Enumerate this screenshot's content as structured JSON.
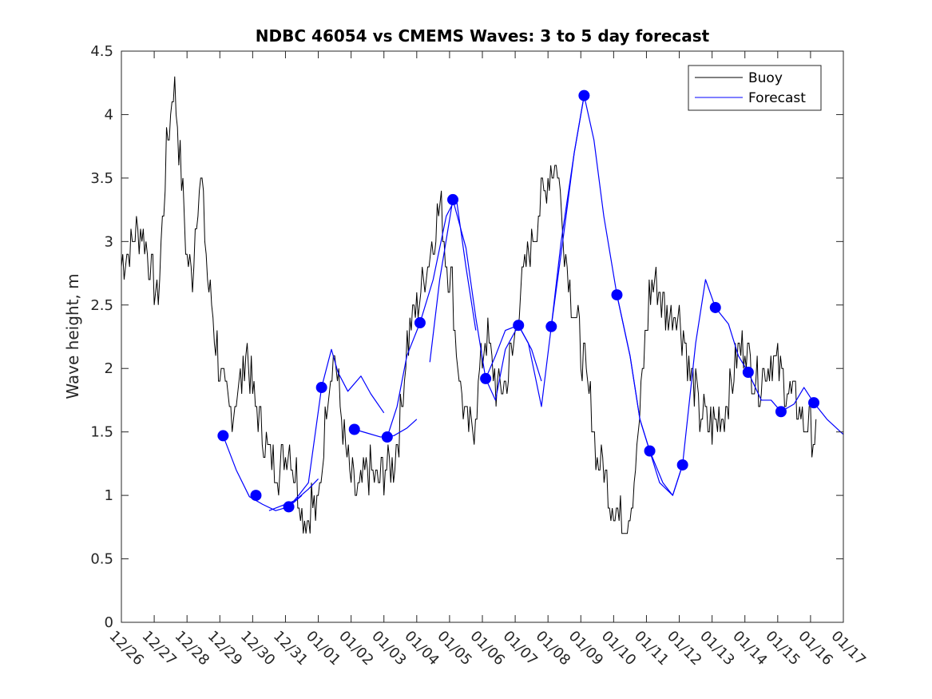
{
  "chart_data": {
    "type": "line",
    "title": "NDBC 46054 vs CMEMS Waves: 3 to 5 day forecast",
    "xlabel": "",
    "ylabel": "Wave height, m",
    "xlim": [
      0,
      22
    ],
    "ylim": [
      0,
      4.5
    ],
    "x_tick_labels": [
      "12/26",
      "12/27",
      "12/28",
      "12/29",
      "12/30",
      "12/31",
      "01/01",
      "01/02",
      "01/03",
      "01/04",
      "01/05",
      "01/06",
      "01/07",
      "01/08",
      "01/09",
      "01/10",
      "01/11",
      "01/12",
      "01/13",
      "01/14",
      "01/15",
      "01/16",
      "01/17"
    ],
    "y_ticks": [
      0,
      0.5,
      1,
      1.5,
      2,
      2.5,
      3,
      3.5,
      4,
      4.5
    ],
    "y_tick_labels": [
      "0",
      "0.5",
      "1",
      "1.5",
      "2",
      "2.5",
      "3",
      "3.5",
      "4",
      "4.5"
    ],
    "legend": {
      "placement": "top-right",
      "entries": [
        {
          "name": "Buoy",
          "color": "#000000"
        },
        {
          "name": "Forecast",
          "color": "#0000ff"
        }
      ]
    },
    "buoy_anchor_series": {
      "name": "Buoy",
      "color": "#000000",
      "x": [
        0,
        0.3,
        0.6,
        0.9,
        1.1,
        1.2,
        1.35,
        1.5,
        1.6,
        1.8,
        2.0,
        2.15,
        2.3,
        2.45,
        2.6,
        2.8,
        3.0,
        3.3,
        3.5,
        3.7,
        3.8,
        4.0,
        4.3,
        4.5,
        4.8,
        5.1,
        5.3,
        5.5,
        5.7,
        5.8,
        5.95,
        6.1,
        6.3,
        6.4,
        6.5,
        6.6,
        6.8,
        7.0,
        7.2,
        7.5,
        7.8,
        8.0,
        8.3,
        8.5,
        8.7,
        8.9,
        9.1,
        9.3,
        9.5,
        9.7,
        9.9,
        10.1,
        10.2,
        10.35,
        10.5,
        10.7,
        10.9,
        11.1,
        11.3,
        11.5,
        11.7,
        11.9,
        12.1,
        12.3,
        12.5,
        12.7,
        12.9,
        13.1,
        13.3,
        13.5,
        13.7,
        13.9,
        14.1,
        14.3,
        14.5,
        14.7,
        14.9,
        15.1,
        15.3,
        15.5,
        15.7,
        15.9,
        16.1,
        16.3,
        16.5,
        16.7,
        16.9,
        17.1,
        17.3,
        17.5,
        17.6,
        17.8,
        18.0,
        18.2,
        18.4,
        18.6,
        18.8,
        19.0,
        19.2,
        19.4,
        19.6,
        19.8,
        20.0,
        20.2,
        20.4,
        20.6,
        20.8,
        21.0,
        21.2
      ],
      "y": [
        2.8,
        3.0,
        3.1,
        2.8,
        2.5,
        2.9,
        3.6,
        4.0,
        4.3,
        3.6,
        2.9,
        2.7,
        3.3,
        3.5,
        2.8,
        2.4,
        2.0,
        1.6,
        1.8,
        1.9,
        2.2,
        1.8,
        1.5,
        1.3,
        1.2,
        1.4,
        1.2,
        0.9,
        0.8,
        1.0,
        0.8,
        1.2,
        1.9,
        2.05,
        2.1,
        1.9,
        1.4,
        1.1,
        1.0,
        1.2,
        1.1,
        1.2,
        1.2,
        1.6,
        2.2,
        2.4,
        2.6,
        2.8,
        3.0,
        3.3,
        2.9,
        2.6,
        2.2,
        1.8,
        1.6,
        1.5,
        1.9,
        2.3,
        2.0,
        1.8,
        1.9,
        2.1,
        2.5,
        2.8,
        3.0,
        3.2,
        3.4,
        3.6,
        3.6,
        3.0,
        2.6,
        2.3,
        2.0,
        1.7,
        1.3,
        1.2,
        1.0,
        0.85,
        0.8,
        0.9,
        1.3,
        2.0,
        2.6,
        2.7,
        2.5,
        2.4,
        2.5,
        2.3,
        2.0,
        1.8,
        1.65,
        1.6,
        1.55,
        1.6,
        1.7,
        1.9,
        2.1,
        2.2,
        2.0,
        1.9,
        2.0,
        2.1,
        2.0,
        1.9,
        1.8,
        1.7,
        1.6,
        1.5,
        1.5
      ]
    },
    "forecast_series": [
      {
        "name": "Forecast",
        "color": "#0000ff",
        "x": [
          3.1,
          3.5,
          3.9,
          4.3,
          4.7,
          5.1,
          5.5
        ],
        "y": [
          1.47,
          1.2,
          0.99,
          0.93,
          0.88,
          0.91,
          1.0
        ]
      },
      {
        "name": "Forecast",
        "color": "#0000ff",
        "x": [
          4.5,
          4.9,
          5.3,
          5.7,
          6.0
        ],
        "y": [
          0.88,
          0.92,
          0.96,
          1.05,
          1.13
        ]
      },
      {
        "name": "Forecast",
        "color": "#0000ff",
        "x": [
          5.1,
          5.4,
          5.7,
          6.1,
          6.4,
          6.6,
          6.9,
          7.3,
          7.6,
          8.0
        ],
        "y": [
          0.91,
          1.0,
          1.1,
          1.85,
          2.15,
          1.97,
          1.82,
          1.94,
          1.8,
          1.65
        ]
      },
      {
        "name": "Forecast",
        "color": "#0000ff",
        "x": [
          7.1,
          7.5,
          7.9,
          8.3,
          8.7,
          9.0
        ],
        "y": [
          1.52,
          1.49,
          1.46,
          1.47,
          1.53,
          1.6
        ]
      },
      {
        "name": "Forecast",
        "color": "#0000ff",
        "x": [
          8.1,
          8.4,
          8.7,
          9.1,
          9.5,
          9.9,
          10.2,
          10.5,
          10.8
        ],
        "y": [
          1.46,
          1.7,
          2.1,
          2.36,
          2.7,
          3.2,
          3.35,
          2.8,
          2.3
        ]
      },
      {
        "name": "Forecast",
        "color": "#0000ff",
        "x": [
          9.4,
          9.7,
          10.1,
          10.5,
          10.8,
          11.1,
          11.4,
          11.7,
          12.1,
          12.5,
          12.8
        ],
        "y": [
          2.05,
          2.7,
          3.33,
          2.95,
          2.4,
          1.92,
          1.75,
          2.15,
          2.34,
          2.15,
          1.9
        ]
      },
      {
        "name": "Forecast",
        "color": "#0000ff",
        "x": [
          11.1,
          11.4,
          11.7,
          12.1,
          12.4,
          12.8,
          13.1,
          13.4,
          13.8,
          14.1
        ],
        "y": [
          1.92,
          2.1,
          2.3,
          2.34,
          2.2,
          1.7,
          2.33,
          3.0,
          3.7,
          4.15
        ]
      },
      {
        "name": "Forecast",
        "color": "#0000ff",
        "x": [
          13.1,
          13.5,
          13.8,
          14.1,
          14.4,
          14.7,
          15.1,
          15.5,
          15.8,
          16.1,
          16.5,
          16.8,
          17.1
        ],
        "y": [
          2.33,
          3.1,
          3.7,
          4.15,
          3.8,
          3.2,
          2.58,
          2.1,
          1.6,
          1.35,
          1.1,
          1.0,
          1.24
        ]
      },
      {
        "name": "Forecast",
        "color": "#0000ff",
        "x": [
          15.1,
          15.5,
          15.8,
          16.1,
          16.4,
          16.8,
          17.1,
          17.5,
          17.8,
          18.1,
          18.5,
          18.8,
          19.1,
          19.5,
          19.8,
          20.1,
          20.5,
          20.8,
          21.1,
          21.5,
          22.0
        ],
        "y": [
          2.58,
          2.1,
          1.6,
          1.35,
          1.1,
          1.0,
          1.24,
          2.2,
          2.7,
          2.48,
          2.35,
          2.1,
          1.97,
          1.75,
          1.75,
          1.66,
          1.72,
          1.85,
          1.73,
          1.6,
          1.48
        ]
      }
    ],
    "forecast_markers": {
      "name": "Forecast",
      "color": "#0000ff",
      "x": [
        3.1,
        4.1,
        5.1,
        6.1,
        7.1,
        8.1,
        9.1,
        10.1,
        11.1,
        12.1,
        13.1,
        14.1,
        15.1,
        16.1,
        17.1,
        18.1,
        19.1,
        20.1,
        21.1
      ],
      "y": [
        1.47,
        1.0,
        0.91,
        1.85,
        1.52,
        1.46,
        2.36,
        3.33,
        1.92,
        2.34,
        2.33,
        4.15,
        2.58,
        1.35,
        1.24,
        2.48,
        1.97,
        1.66,
        1.73
      ]
    }
  }
}
